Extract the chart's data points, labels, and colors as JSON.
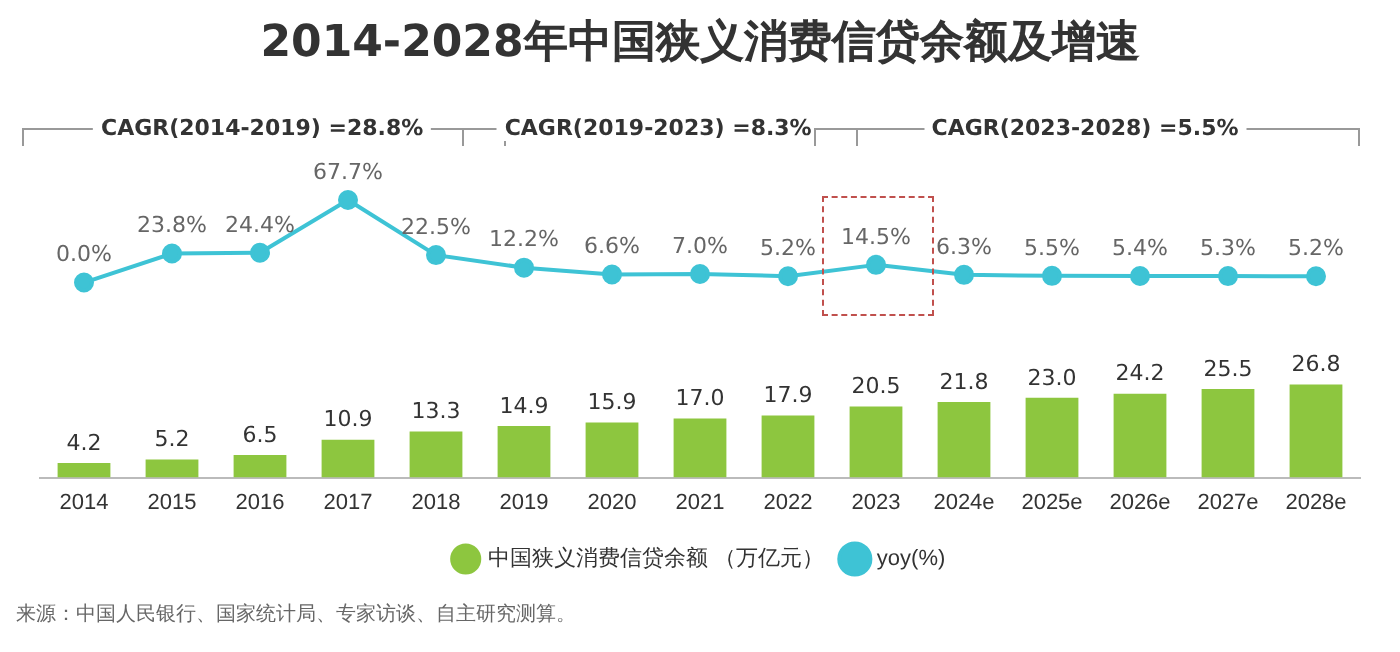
{
  "chart_data": {
    "type": "bar",
    "title": "2014-2028年中国狭义消费信贷余额及增速",
    "ylim": [
      0,
      80
    ],
    "y2lim": [
      -160,
      67.7
    ],
    "tick_labels": "x",
    "grid": false,
    "legend": "bottom",
    "marker": "circle",
    "categories": [
      "2014",
      "2015",
      "2016",
      "2017",
      "2018",
      "2019",
      "2020",
      "2021",
      "2022",
      "2023",
      "2024e",
      "2025e",
      "2026e",
      "2027e",
      "2028e"
    ],
    "series": [
      {
        "name": "中国狭义消费信贷余额 （万亿元）",
        "color": "#8dc63f",
        "values": [
          4.2,
          5.2,
          6.5,
          10.9,
          13.3,
          14.9,
          15.9,
          17.0,
          17.9,
          20.5,
          21.8,
          23.0,
          24.2,
          25.5,
          26.8
        ],
        "value_labels": [
          "4.2",
          "5.2",
          "6.5",
          "10.9",
          "13.3",
          "14.9",
          "15.9",
          "17.0",
          "17.9",
          "20.5",
          "21.8",
          "23.0",
          "24.2",
          "25.5",
          "26.8"
        ]
      },
      {
        "name": "yoy(%)",
        "type": "line",
        "axis": "y2",
        "color": "#3ec3d5",
        "values": [
          0.0,
          23.8,
          24.4,
          67.7,
          22.5,
          12.2,
          6.6,
          7.0,
          5.2,
          14.5,
          6.3,
          5.5,
          5.4,
          5.3,
          5.2
        ],
        "value_labels": [
          "0.0%",
          "23.8%",
          "24.4%",
          "67.7%",
          "22.5%",
          "12.2%",
          "6.6%",
          "7.0%",
          "5.2%",
          "14.5%",
          "6.3%",
          "5.5%",
          "5.4%",
          "5.3%",
          "5.2%"
        ]
      }
    ],
    "annotations": [
      "CAGR(2014-2019) =28.8%",
      "CAGR(2019-2023) =8.3%",
      "CAGR(2023-2028) =5.5%",
      "来源：中国人民银行、国家统计局、专家访谈、自主研究测算。"
    ]
  }
}
